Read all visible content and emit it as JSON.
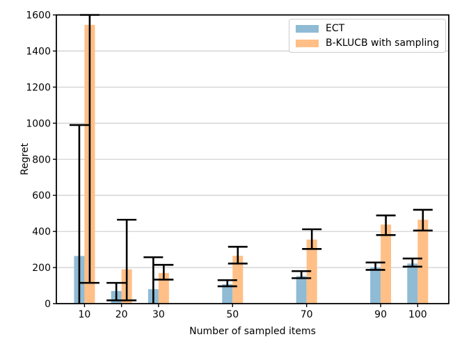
{
  "chart_data": {
    "type": "bar",
    "title": "",
    "xlabel": "Number of sampled items",
    "ylabel": "Regret",
    "x": [
      10,
      20,
      30,
      50,
      70,
      90,
      100
    ],
    "xticks": [
      10,
      20,
      30,
      50,
      70,
      90,
      100
    ],
    "yticks": [
      0,
      200,
      400,
      600,
      800,
      1000,
      1200,
      1400,
      1600
    ],
    "xlim": [
      2.4,
      108.4
    ],
    "ylim": [
      0,
      1600
    ],
    "grid": "horizontal-only",
    "legend_position": "upper-right",
    "series": [
      {
        "name": "ECT",
        "color": "#8FBBD4",
        "values": [
          264,
          70,
          80,
          107,
          153,
          202,
          222
        ],
        "err_low": [
          0,
          18,
          0,
          96,
          141,
          187,
          205
        ],
        "err_high": [
          990,
          115,
          257,
          130,
          180,
          228,
          250
        ]
      },
      {
        "name": "B-KLUCB with sampling",
        "color": "#FFBF86",
        "values": [
          1545,
          190,
          170,
          265,
          355,
          438,
          465
        ],
        "err_low": [
          115,
          18,
          133,
          222,
          303,
          380,
          405
        ],
        "err_high": [
          1600,
          465,
          215,
          315,
          412,
          489,
          520
        ]
      }
    ],
    "error_bar_color": "#000000",
    "colors": {
      "grid": "#c8c8c8",
      "spine": "#000000",
      "text": "#000000"
    }
  }
}
